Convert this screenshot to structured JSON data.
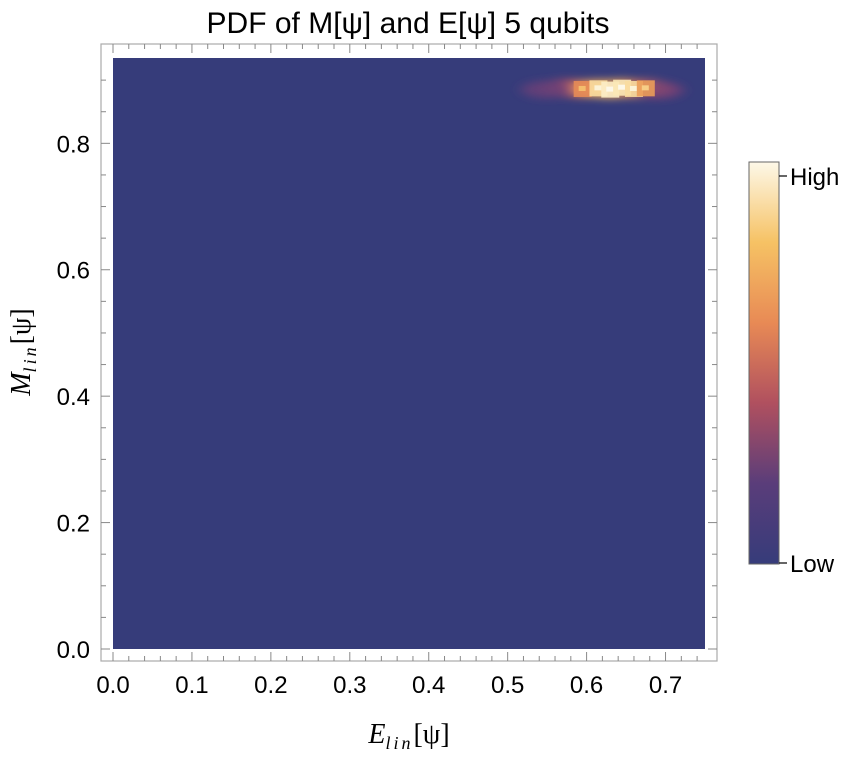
{
  "chart_data": {
    "type": "heatmap",
    "title": "PDF of M[ψ] and E[ψ] 5 qubits",
    "xlabel": {
      "main": "E",
      "sub": "lin",
      "arg": "[ψ]"
    },
    "ylabel": {
      "main": "M",
      "sub": "lin",
      "arg": "[ψ]"
    },
    "xlim": [
      0.0,
      0.75
    ],
    "ylim": [
      0.0,
      0.935
    ],
    "x_ticks": [
      "0.0",
      "0.1",
      "0.2",
      "0.3",
      "0.4",
      "0.5",
      "0.6",
      "0.7"
    ],
    "x_tick_values": [
      0.0,
      0.1,
      0.2,
      0.3,
      0.4,
      0.5,
      0.6,
      0.7
    ],
    "y_ticks": [
      "0.0",
      "0.2",
      "0.4",
      "0.6",
      "0.8"
    ],
    "y_tick_values": [
      0.0,
      0.2,
      0.4,
      0.6,
      0.8
    ],
    "background_color": "#363c7a",
    "colorscale": [
      "#363c7a",
      "#6c3e78",
      "#b4505f",
      "#e07a55",
      "#f2b35c",
      "#fbe6b0",
      "#fdf8e8"
    ],
    "legend": {
      "high": "High",
      "low": "Low",
      "position": "right"
    },
    "density_peaks": [
      {
        "x": 0.575,
        "y": 0.888,
        "value": 0.35
      },
      {
        "x": 0.595,
        "y": 0.886,
        "value": 0.55
      },
      {
        "x": 0.615,
        "y": 0.887,
        "value": 0.8
      },
      {
        "x": 0.63,
        "y": 0.885,
        "value": 0.9
      },
      {
        "x": 0.645,
        "y": 0.888,
        "value": 0.85
      },
      {
        "x": 0.66,
        "y": 0.886,
        "value": 0.8
      },
      {
        "x": 0.675,
        "y": 0.887,
        "value": 0.6
      },
      {
        "x": 0.55,
        "y": 0.885,
        "value": 0.2
      },
      {
        "x": 0.69,
        "y": 0.884,
        "value": 0.25
      }
    ]
  }
}
